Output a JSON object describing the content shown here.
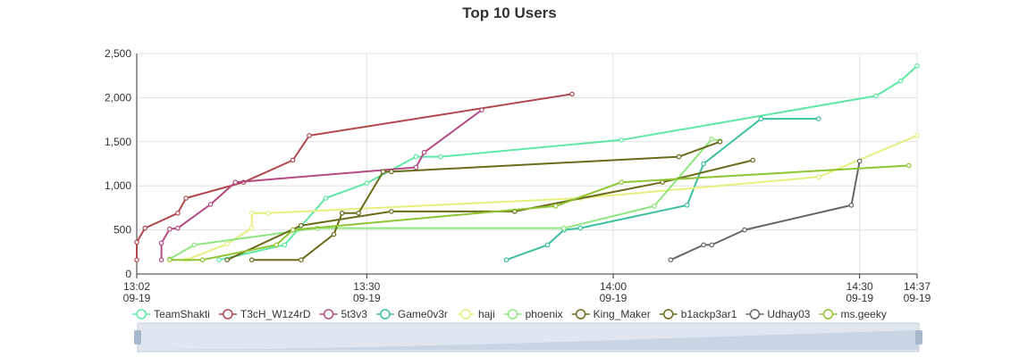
{
  "chart_data": {
    "type": "line",
    "title": "Top 10 Users",
    "x_axis": {
      "type": "time",
      "range": [
        "09-19 13:02",
        "09-19 14:37"
      ],
      "ticks": [
        {
          "t": "09-19 13:02",
          "time": "13:02",
          "date": "09-19"
        },
        {
          "t": "09-19 13:30",
          "time": "13:30",
          "date": "09-19"
        },
        {
          "t": "09-19 14:00",
          "time": "14:00",
          "date": "09-19"
        },
        {
          "t": "09-19 14:30",
          "time": "14:30",
          "date": "09-19"
        },
        {
          "t": "09-19 14:37",
          "time": "14:37",
          "date": "09-19"
        }
      ]
    },
    "y_axis": {
      "range": [
        0,
        2500
      ],
      "ticks": [
        {
          "v": 0,
          "label": "0"
        },
        {
          "v": 500,
          "label": "500"
        },
        {
          "v": 1000,
          "label": "1,000"
        },
        {
          "v": 1500,
          "label": "1,500"
        },
        {
          "v": 2000,
          "label": "2,000"
        },
        {
          "v": 2500,
          "label": "2,500"
        }
      ]
    },
    "grid": true,
    "legend_position": "bottom",
    "series": [
      {
        "name": "TeamShakti",
        "color": "#5ee8a4",
        "points": [
          [
            "09-19 13:12",
            160
          ],
          [
            "09-19 13:20",
            330
          ],
          [
            "09-19 13:25",
            860
          ],
          [
            "09-19 13:30",
            1030
          ],
          [
            "09-19 13:36",
            1330
          ],
          [
            "09-19 13:39",
            1330
          ],
          [
            "09-19 14:01",
            1520
          ],
          [
            "09-19 14:32",
            2020
          ],
          [
            "09-19 14:35",
            2190
          ],
          [
            "09-19 14:37",
            2360
          ]
        ]
      },
      {
        "name": "T3cH_W1z4rD",
        "color": "#b0474e",
        "points": [
          [
            "09-19 13:02",
            160
          ],
          [
            "09-19 13:02",
            360
          ],
          [
            "09-19 13:03",
            520
          ],
          [
            "09-19 13:07",
            690
          ],
          [
            "09-19 13:08",
            860
          ],
          [
            "09-19 13:15",
            1040
          ],
          [
            "09-19 13:21",
            1290
          ],
          [
            "09-19 13:23",
            1570
          ],
          [
            "09-19 13:55",
            2040
          ]
        ]
      },
      {
        "name": "5t3v3",
        "color": "#b34a82",
        "points": [
          [
            "09-19 13:05",
            160
          ],
          [
            "09-19 13:05",
            350
          ],
          [
            "09-19 13:06",
            510
          ],
          [
            "09-19 13:07",
            520
          ],
          [
            "09-19 13:11",
            790
          ],
          [
            "09-19 13:14",
            1040
          ],
          [
            "09-19 13:36",
            1210
          ],
          [
            "09-19 13:37",
            1380
          ],
          [
            "09-19 13:44",
            1860
          ]
        ]
      },
      {
        "name": "Game0v3r",
        "color": "#3bbf9e",
        "points": [
          [
            "09-19 13:47",
            160
          ],
          [
            "09-19 13:52",
            330
          ],
          [
            "09-19 13:54",
            500
          ],
          [
            "09-19 13:56",
            520
          ],
          [
            "09-19 14:09",
            780
          ],
          [
            "09-19 14:11",
            1250
          ],
          [
            "09-19 14:18",
            1760
          ],
          [
            "09-19 14:25",
            1760
          ]
        ]
      },
      {
        "name": "haji",
        "color": "#e6ef7d",
        "points": [
          [
            "09-19 13:08",
            160
          ],
          [
            "09-19 13:13",
            340
          ],
          [
            "09-19 13:16",
            520
          ],
          [
            "09-19 13:16",
            690
          ],
          [
            "09-19 13:18",
            690
          ],
          [
            "09-19 13:56",
            860
          ],
          [
            "09-19 14:25",
            1100
          ],
          [
            "09-19 14:37",
            1570
          ]
        ]
      },
      {
        "name": "phoenix",
        "color": "#8fe57f",
        "points": [
          [
            "09-19 13:06",
            170
          ],
          [
            "09-19 13:09",
            330
          ],
          [
            "09-19 13:24",
            520
          ],
          [
            "09-19 13:54",
            520
          ],
          [
            "09-19 14:05",
            770
          ],
          [
            "09-19 14:12",
            1530
          ],
          [
            "09-19 14:13",
            1510
          ]
        ]
      },
      {
        "name": "King_Maker",
        "color": "#6b6a19",
        "points": [
          [
            "09-19 13:13",
            160
          ],
          [
            "09-19 13:22",
            550
          ],
          [
            "09-19 13:33",
            710
          ],
          [
            "09-19 13:48",
            710
          ],
          [
            "09-19 14:06",
            1040
          ],
          [
            "09-19 14:17",
            1290
          ]
        ]
      },
      {
        "name": "b1ackp3ar1",
        "color": "#6b6a19",
        "points": [
          [
            "09-19 13:16",
            160
          ],
          [
            "09-19 13:22",
            160
          ],
          [
            "09-19 13:26",
            450
          ],
          [
            "09-19 13:27",
            690
          ],
          [
            "09-19 13:29",
            690
          ],
          [
            "09-19 13:32",
            1160
          ],
          [
            "09-19 13:33",
            1160
          ],
          [
            "09-19 14:08",
            1330
          ],
          [
            "09-19 14:13",
            1500
          ]
        ]
      },
      {
        "name": "Udhay03",
        "color": "#666666",
        "points": [
          [
            "09-19 14:07",
            160
          ],
          [
            "09-19 14:11",
            330
          ],
          [
            "09-19 14:12",
            330
          ],
          [
            "09-19 14:16",
            500
          ],
          [
            "09-19 14:29",
            780
          ],
          [
            "09-19 14:30",
            1280
          ]
        ]
      },
      {
        "name": "ms.geeky",
        "color": "#8fc431",
        "points": [
          [
            "09-19 13:06",
            160
          ],
          [
            "09-19 13:10",
            160
          ],
          [
            "09-19 13:19",
            330
          ],
          [
            "09-19 13:21",
            500
          ],
          [
            "09-19 13:53",
            770
          ],
          [
            "09-19 14:01",
            1040
          ],
          [
            "09-19 14:36",
            1230
          ]
        ]
      }
    ]
  }
}
